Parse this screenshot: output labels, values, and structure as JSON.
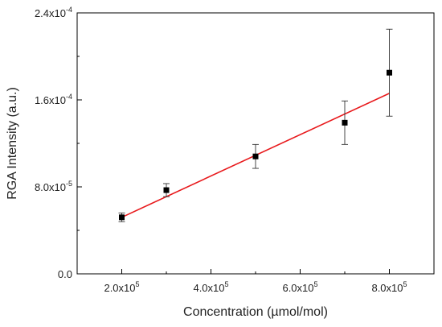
{
  "chart_data": {
    "type": "scatter",
    "title": "",
    "xlabel": "Concentration (µmol/mol)",
    "ylabel": "RGA Intensity (a.u.)",
    "xlim": [
      100000,
      900000
    ],
    "ylim": [
      0,
      0.00024
    ],
    "x_ticks": [
      {
        "value": 200000,
        "mantissa": "2.0x10",
        "exp": "5"
      },
      {
        "value": 400000,
        "mantissa": "4.0x10",
        "exp": "5"
      },
      {
        "value": 600000,
        "mantissa": "6.0x10",
        "exp": "5"
      },
      {
        "value": 800000,
        "mantissa": "8.0x10",
        "exp": "5"
      }
    ],
    "y_ticks": [
      {
        "value": 0,
        "mantissa": "0.0",
        "exp": ""
      },
      {
        "value": 8e-05,
        "mantissa": "8.0x10",
        "exp": "-5"
      },
      {
        "value": 0.00016,
        "mantissa": "1.6x10",
        "exp": "-4"
      },
      {
        "value": 0.00024,
        "mantissa": "2.4x10",
        "exp": "-4"
      }
    ],
    "grid": false,
    "series": [
      {
        "marker": "square",
        "color": "#000000",
        "points": [
          {
            "x": 200000,
            "y": 5.2e-05,
            "err": 4e-06
          },
          {
            "x": 300000,
            "y": 7.7e-05,
            "err": 6e-06
          },
          {
            "x": 500000,
            "y": 0.000108,
            "err": 1.1e-05
          },
          {
            "x": 700000,
            "y": 0.000139,
            "err": 2e-05
          },
          {
            "x": 800000,
            "y": 0.000185,
            "err": 4e-05
          }
        ]
      }
    ],
    "fit_line": {
      "color": "#e8191c",
      "x": [
        200000,
        800000
      ],
      "y": [
        5.2e-05,
        0.000166
      ]
    }
  }
}
